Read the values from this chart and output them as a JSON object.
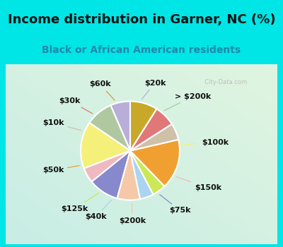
{
  "title": "Income distribution in Garner, NC (%)",
  "subtitle": "Black or African American residents",
  "labels": [
    "$20k",
    "> $200k",
    "$100k",
    "$150k",
    "$75k",
    "$200k",
    "$40k",
    "$125k",
    "$50k",
    "$10k",
    "$30k",
    "$60k"
  ],
  "values": [
    6.5,
    9.0,
    15.5,
    5.0,
    10.0,
    7.5,
    4.5,
    4.5,
    16.5,
    5.5,
    7.0,
    9.0
  ],
  "colors": [
    "#b8aed8",
    "#b0c8a0",
    "#f5f07a",
    "#f0b8c0",
    "#8888cc",
    "#f5c8a8",
    "#aad4f0",
    "#cce855",
    "#f0a030",
    "#cfc0a8",
    "#e07878",
    "#c8a828"
  ],
  "bg_color": "#00e5e5",
  "chart_bg_colors": [
    "#c8ede5",
    "#dff5e8"
  ],
  "title_color": "#111111",
  "subtitle_color": "#2288aa",
  "label_color": "#111111",
  "title_fontsize": 13,
  "subtitle_fontsize": 10,
  "label_fontsize": 8
}
